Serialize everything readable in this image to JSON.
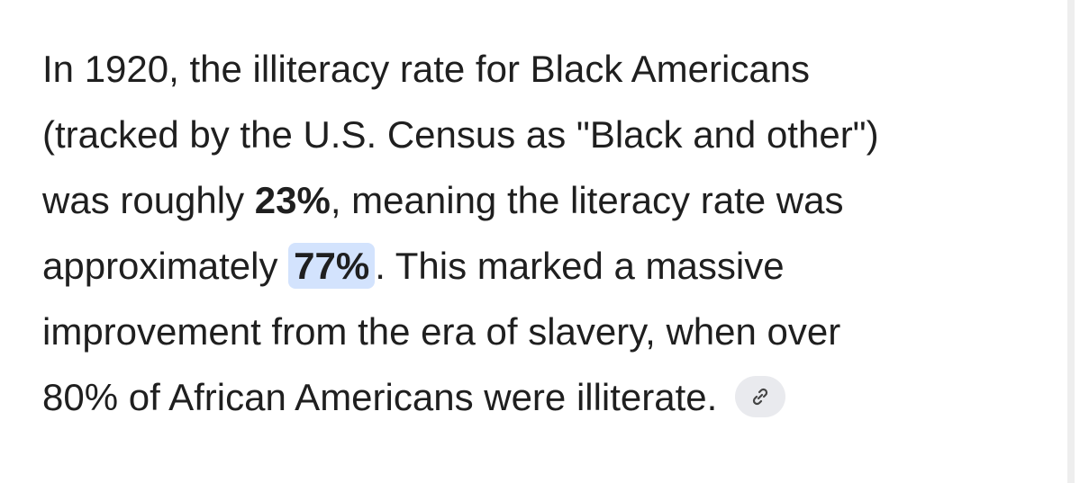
{
  "response": {
    "lines": [
      [
        "In 1920, the illiteracy rate for Black Americans"
      ],
      [
        "(tracked by the U.S. Census as \"Black and other\")"
      ],
      [
        "was roughly ",
        "23%",
        ", meaning the literacy rate was"
      ],
      [
        "approximately ",
        "77%",
        ". This marked a massive"
      ],
      [
        "improvement from the era of slavery, when over"
      ],
      [
        "80% of African Americans were illiterate."
      ]
    ]
  }
}
